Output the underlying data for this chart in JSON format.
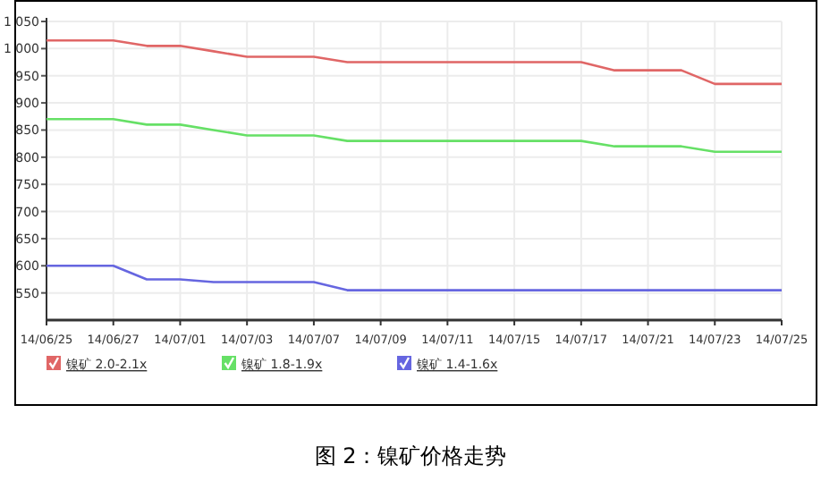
{
  "chart_data": {
    "type": "line",
    "title": "图 2：镍矿价格走势",
    "categories": [
      "14/06/25",
      null,
      "14/06/27",
      null,
      "14/07/01",
      null,
      "14/07/03",
      null,
      "14/07/07",
      null,
      "14/07/09",
      null,
      "14/07/11",
      null,
      "14/07/15",
      null,
      "14/07/17",
      null,
      "14/07/21",
      null,
      "14/07/23",
      null,
      "14/07/25"
    ],
    "series": [
      {
        "name": "镍矿 2.0-2.1x",
        "color": "#e06666",
        "values": [
          1015,
          1015,
          1015,
          1005,
          1005,
          995,
          985,
          985,
          985,
          975,
          975,
          975,
          975,
          975,
          975,
          975,
          975,
          960,
          960,
          960,
          935,
          935,
          935
        ]
      },
      {
        "name": "镍矿 1.8-1.9x",
        "color": "#66e066",
        "values": [
          870,
          870,
          870,
          860,
          860,
          850,
          840,
          840,
          840,
          830,
          830,
          830,
          830,
          830,
          830,
          830,
          830,
          820,
          820,
          820,
          810,
          810,
          810
        ]
      },
      {
        "name": "镍矿 1.4-1.6x",
        "color": "#6666e0",
        "values": [
          600,
          600,
          600,
          575,
          575,
          570,
          570,
          570,
          570,
          555,
          555,
          555,
          555,
          555,
          555,
          555,
          555,
          555,
          555,
          555,
          555,
          555,
          555
        ]
      }
    ],
    "ylim": [
      500,
      1050
    ],
    "yticks": [
      {
        "value": 550,
        "label": "550"
      },
      {
        "value": 600,
        "label": "600"
      },
      {
        "value": 650,
        "label": "650"
      },
      {
        "value": 700,
        "label": "700"
      },
      {
        "value": 750,
        "label": "750"
      },
      {
        "value": 800,
        "label": "800"
      },
      {
        "value": 850,
        "label": "850"
      },
      {
        "value": 900,
        "label": "900"
      },
      {
        "value": 950,
        "label": "950"
      },
      {
        "value": 1000,
        "label": "1 000"
      },
      {
        "value": 1050,
        "label": "1 050"
      }
    ],
    "grid": true,
    "legend": "bottom",
    "line_style": "solid"
  }
}
